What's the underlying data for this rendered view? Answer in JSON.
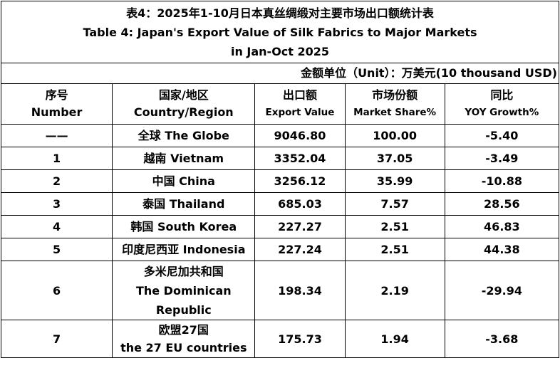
{
  "title": {
    "cn": "表4：2025年1-10月日本真丝绸缎对主要市场出口额统计表",
    "en_line1": "Table 4: Japan's Export Value of Silk Fabrics to Major Markets",
    "en_line2": "in Jan-Oct 2025"
  },
  "unit": "金额单位（Unit）：万美元(10 thousand USD)",
  "headers": {
    "number_cn": "序号",
    "number_en": "Number",
    "country_cn": "国家/地区",
    "country_en": "Country/Region",
    "value_cn": "出口额",
    "value_en": "Export Value",
    "share_cn": "市场份额",
    "share_en": "Market Share%",
    "yoy_cn": "同比",
    "yoy_en": "YOY Growth%"
  },
  "rows": [
    {
      "num": "——",
      "country": "全球 The Globe",
      "value": "9046.80",
      "share": "100.00",
      "yoy": "-5.40"
    },
    {
      "num": "1",
      "country": "越南 Vietnam",
      "value": "3352.04",
      "share": "37.05",
      "yoy": "-3.49"
    },
    {
      "num": "2",
      "country": "中国 China",
      "value": "3256.12",
      "share": "35.99",
      "yoy": "-10.88"
    },
    {
      "num": "3",
      "country": "泰国 Thailand",
      "value": "685.03",
      "share": "7.57",
      "yoy": "28.56"
    },
    {
      "num": "4",
      "country": "韩国 South Korea",
      "value": "227.27",
      "share": "2.51",
      "yoy": "46.83"
    },
    {
      "num": "5",
      "country": "印度尼西亚 Indonesia",
      "value": "227.24",
      "share": "2.51",
      "yoy": "44.38"
    },
    {
      "num": "6",
      "country_l1": "多米尼加共和国",
      "country_l2": "The Dominican",
      "country_l3": "Republic",
      "value": "198.34",
      "share": "2.19",
      "yoy": "-29.94"
    },
    {
      "num": "7",
      "country_l1": "欧盟27国",
      "country_l2": "the 27 EU countries",
      "value": "175.73",
      "share": "1.94",
      "yoy": "-3.68"
    }
  ]
}
